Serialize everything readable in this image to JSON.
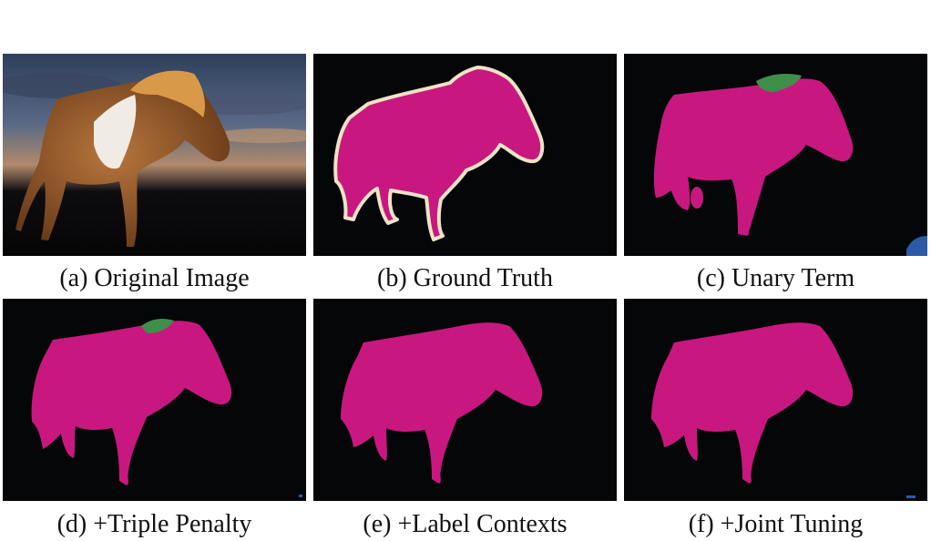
{
  "figure": {
    "panels": [
      {
        "id": "a",
        "caption": "(a) Original Image"
      },
      {
        "id": "b",
        "caption": "(b) Ground Truth"
      },
      {
        "id": "c",
        "caption": "(c) Unary Term"
      },
      {
        "id": "d",
        "caption": "(d) +Triple Penalty"
      },
      {
        "id": "e",
        "caption": "(e) +Label Contexts"
      },
      {
        "id": "f",
        "caption": "(f) +Joint Tuning"
      }
    ],
    "colors": {
      "background": "#050608",
      "horse_label": "#c8187f",
      "boundary": "#efe3c6",
      "second_label": "#3e8f4a",
      "third_label": "#2a5aa8"
    }
  }
}
